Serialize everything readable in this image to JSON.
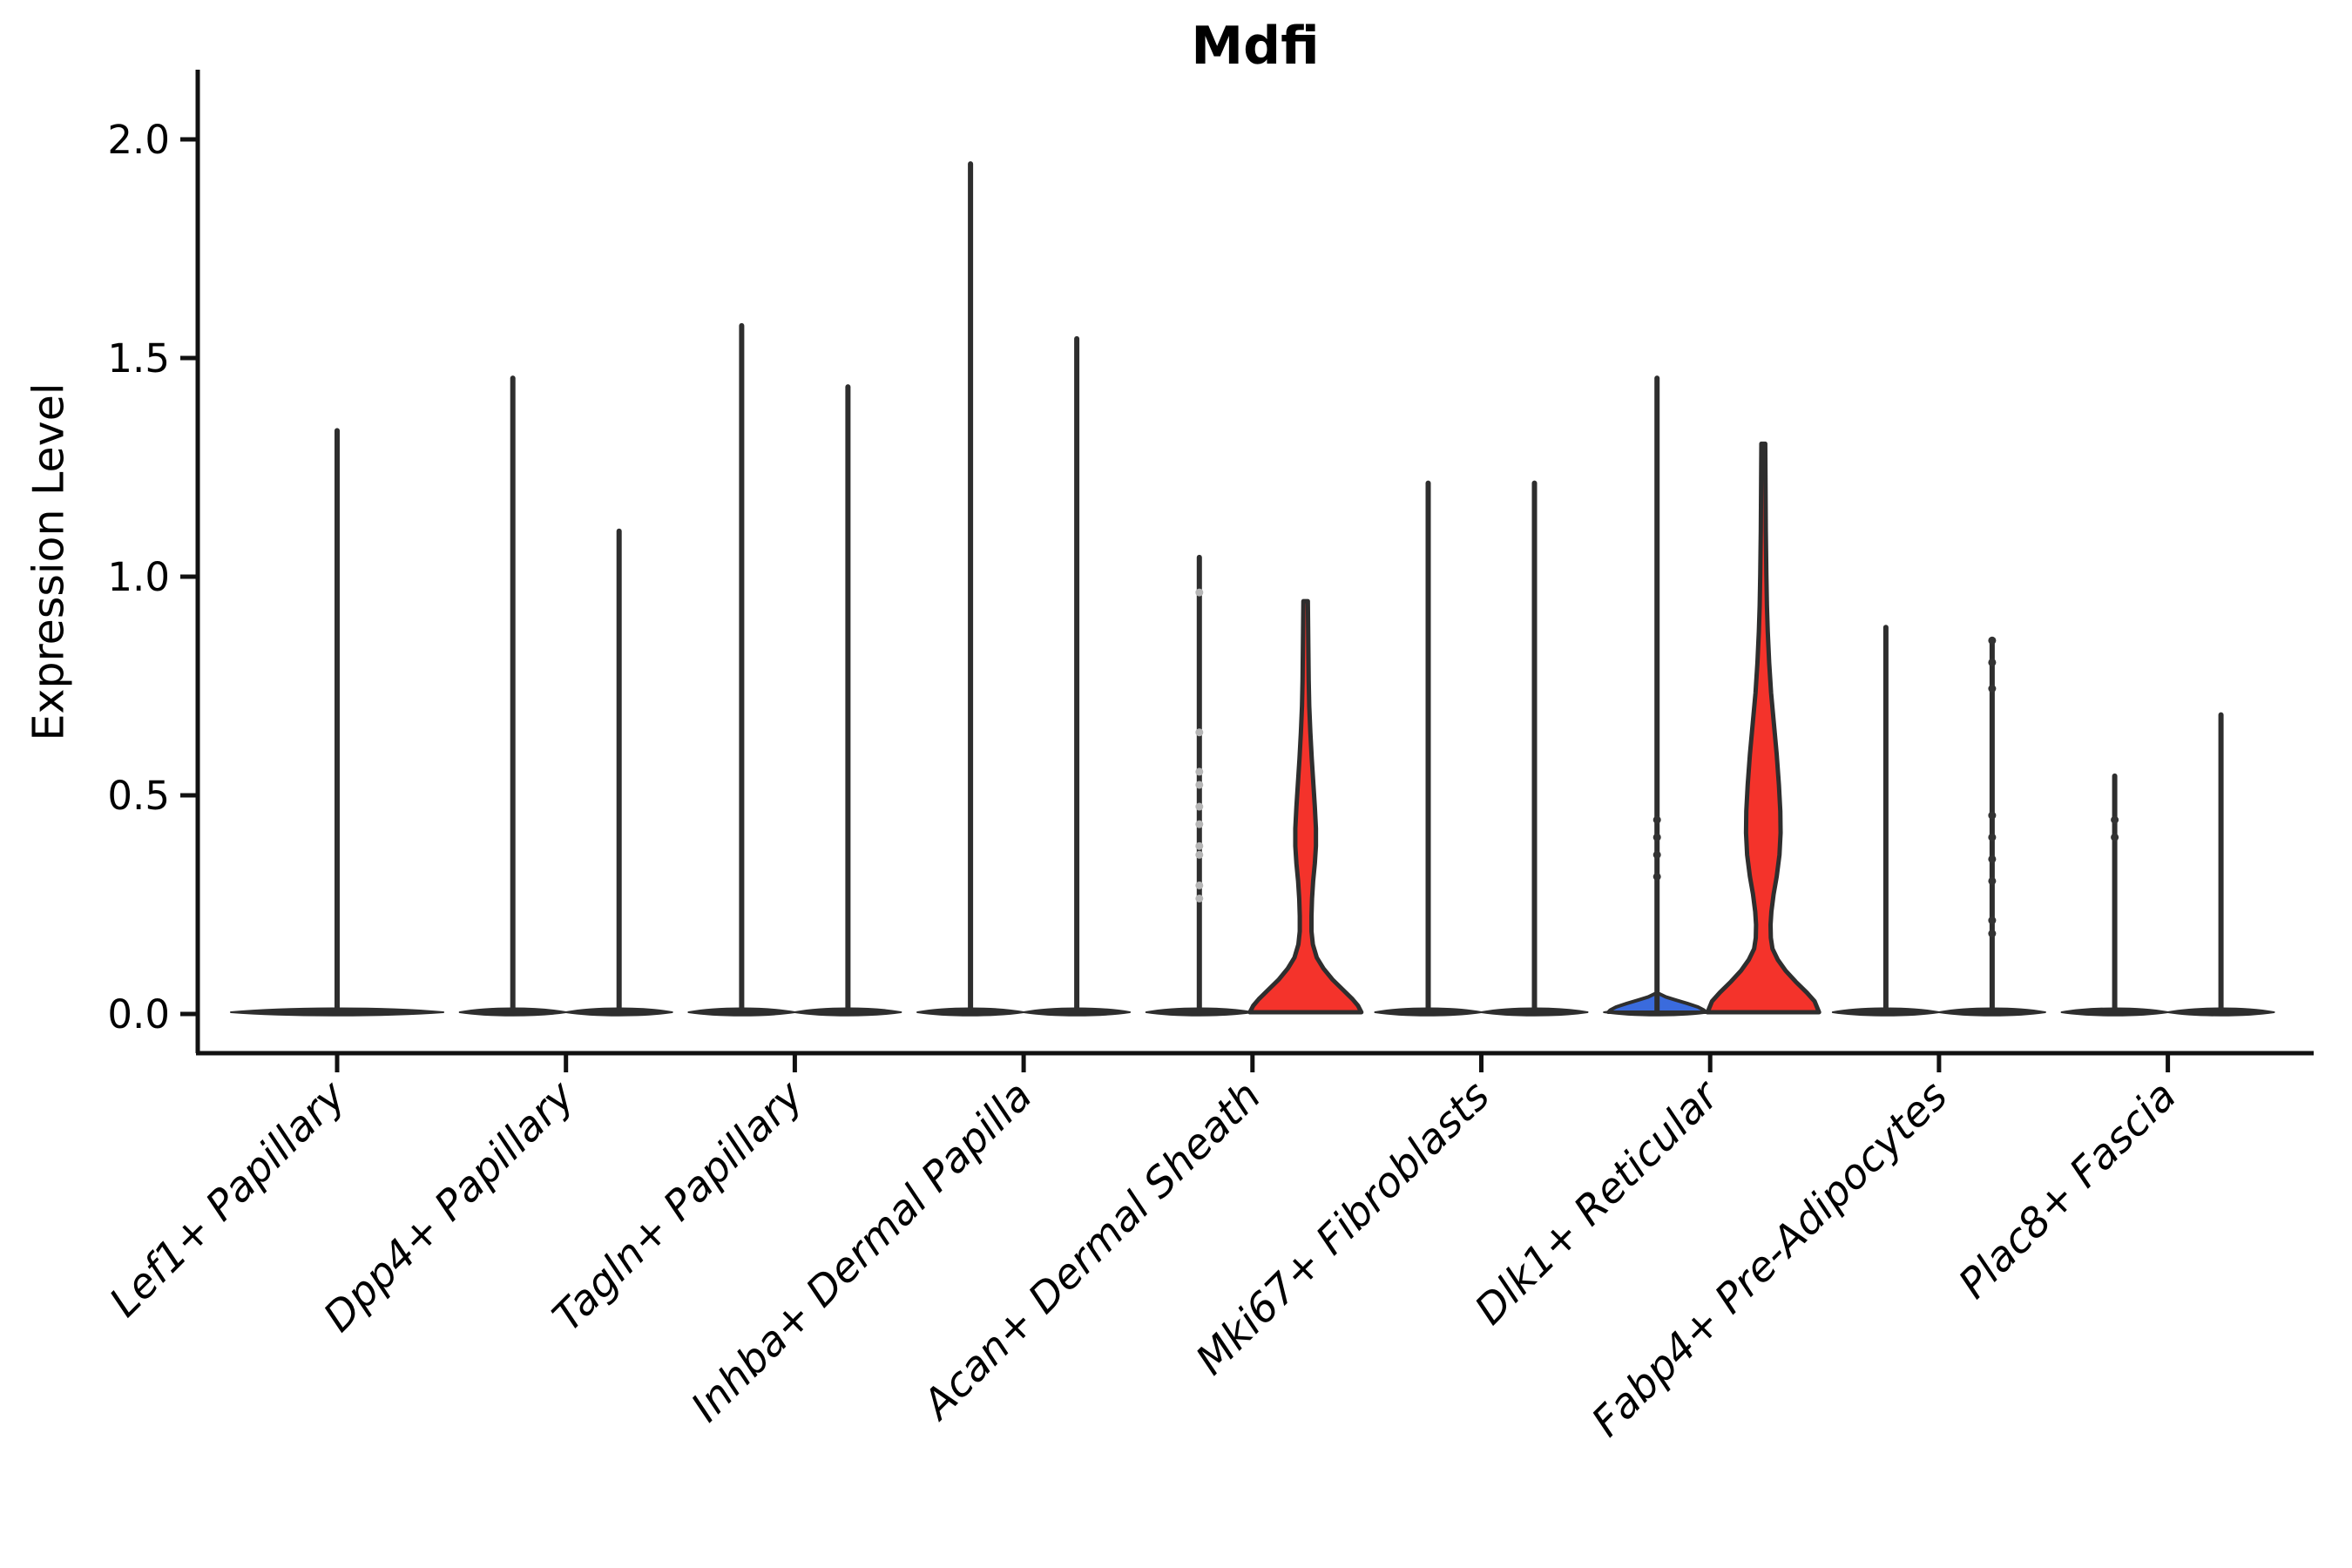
{
  "title": "Mdfi",
  "ylabel": "Expression Level",
  "chart_data": {
    "type": "violin",
    "title": "Mdfi",
    "xlabel": "",
    "ylabel": "Expression Level",
    "ylim": [
      0.0,
      2.0
    ],
    "yticks": [
      "0.0",
      "0.5",
      "1.0",
      "1.5",
      "2.0"
    ],
    "grid": false,
    "legend": "none",
    "categories": [
      "Lef1+ Papillary",
      "Dpp4+ Papillary",
      "Tagln+ Papillary",
      "Inhba+ Dermal Papilla",
      "Acan+ Dermal Sheath",
      "Mki67+ Fibroblasts",
      "Dlk1+ Reticular",
      "Fabp4+ Pre-Adipocytes",
      "Plac8+ Fascia"
    ],
    "colors": {
      "red_fill": "#f4332b",
      "blue_fill": "#3a6bdd",
      "violin_outline": "#2e2e2e",
      "axis": "#111111",
      "light_dot": "#b6b6b6",
      "dark_dot": "#333333"
    },
    "violins": [
      {
        "category": "Lef1+ Papillary",
        "slot": "center",
        "kind": "spike",
        "max_expression": 1.33,
        "wide_base": true,
        "fill": "none",
        "dots": [],
        "dot_shade": "none"
      },
      {
        "category": "Dpp4+ Papillary",
        "slot": "left",
        "kind": "spike",
        "max_expression": 1.45,
        "fill": "none",
        "dots": [],
        "dot_shade": "none"
      },
      {
        "category": "Dpp4+ Papillary",
        "slot": "right",
        "kind": "spike",
        "max_expression": 1.1,
        "fill": "none",
        "dots": [],
        "dot_shade": "none"
      },
      {
        "category": "Tagln+ Papillary",
        "slot": "left",
        "kind": "spike",
        "max_expression": 1.57,
        "fill": "none",
        "dots": [],
        "dot_shade": "none"
      },
      {
        "category": "Tagln+ Papillary",
        "slot": "right",
        "kind": "spike",
        "max_expression": 1.43,
        "fill": "none",
        "dots": [],
        "dot_shade": "none"
      },
      {
        "category": "Inhba+ Dermal Papilla",
        "slot": "left",
        "kind": "spike",
        "max_expression": 1.94,
        "fill": "none",
        "dots": [],
        "dot_shade": "none"
      },
      {
        "category": "Inhba+ Dermal Papilla",
        "slot": "right",
        "kind": "spike",
        "max_expression": 1.54,
        "fill": "none",
        "dots": [],
        "dot_shade": "none"
      },
      {
        "category": "Acan+ Dermal Sheath",
        "slot": "left",
        "kind": "spike",
        "max_expression": 1.04,
        "fill": "none",
        "dots": [
          0.96,
          0.64,
          0.55,
          0.52,
          0.47,
          0.43,
          0.38,
          0.36,
          0.29,
          0.26
        ],
        "dot_shade": "light"
      },
      {
        "category": "Acan+ Dermal Sheath",
        "slot": "right",
        "kind": "density",
        "max_expression": 0.94,
        "fill": "red",
        "profile": [
          [
            0.94,
            0.04
          ],
          [
            0.88,
            0.045
          ],
          [
            0.82,
            0.05
          ],
          [
            0.76,
            0.055
          ],
          [
            0.7,
            0.065
          ],
          [
            0.64,
            0.085
          ],
          [
            0.58,
            0.11
          ],
          [
            0.52,
            0.14
          ],
          [
            0.47,
            0.165
          ],
          [
            0.42,
            0.185
          ],
          [
            0.38,
            0.185
          ],
          [
            0.34,
            0.165
          ],
          [
            0.3,
            0.135
          ],
          [
            0.26,
            0.115
          ],
          [
            0.22,
            0.105
          ],
          [
            0.185,
            0.105
          ],
          [
            0.155,
            0.13
          ],
          [
            0.125,
            0.2
          ],
          [
            0.1,
            0.32
          ],
          [
            0.075,
            0.48
          ],
          [
            0.05,
            0.68
          ],
          [
            0.03,
            0.84
          ],
          [
            0.015,
            0.94
          ],
          [
            0.0,
            1.0
          ]
        ],
        "dots": [],
        "dot_shade": "none"
      },
      {
        "category": "Mki67+ Fibroblasts",
        "slot": "left",
        "kind": "spike",
        "max_expression": 1.21,
        "fill": "none",
        "dots": [],
        "dot_shade": "none"
      },
      {
        "category": "Mki67+ Fibroblasts",
        "slot": "right",
        "kind": "spike",
        "max_expression": 1.21,
        "fill": "none",
        "dots": [],
        "dot_shade": "none"
      },
      {
        "category": "Dlk1+ Reticular",
        "slot": "left",
        "kind": "spike",
        "max_expression": 1.45,
        "fill": "blue",
        "base_bump": {
          "peak": 0.042,
          "profile": [
            [
              0.042,
              0.05
            ],
            [
              0.035,
              0.18
            ],
            [
              0.028,
              0.38
            ],
            [
              0.02,
              0.62
            ],
            [
              0.012,
              0.84
            ],
            [
              0.005,
              0.96
            ],
            [
              0.0,
              1.0
            ]
          ]
        },
        "dots": [
          0.44,
          0.4,
          0.36,
          0.31
        ],
        "dot_shade": "dark"
      },
      {
        "category": "Dlk1+ Reticular",
        "slot": "right",
        "kind": "density",
        "max_expression": 1.3,
        "fill": "red",
        "profile": [
          [
            1.3,
            0.035
          ],
          [
            1.2,
            0.04
          ],
          [
            1.1,
            0.045
          ],
          [
            1.0,
            0.055
          ],
          [
            0.93,
            0.065
          ],
          [
            0.87,
            0.08
          ],
          [
            0.8,
            0.105
          ],
          [
            0.73,
            0.14
          ],
          [
            0.66,
            0.19
          ],
          [
            0.59,
            0.24
          ],
          [
            0.52,
            0.28
          ],
          [
            0.46,
            0.305
          ],
          [
            0.41,
            0.31
          ],
          [
            0.36,
            0.29
          ],
          [
            0.31,
            0.24
          ],
          [
            0.27,
            0.185
          ],
          [
            0.23,
            0.145
          ],
          [
            0.2,
            0.13
          ],
          [
            0.17,
            0.135
          ],
          [
            0.145,
            0.165
          ],
          [
            0.12,
            0.26
          ],
          [
            0.095,
            0.4
          ],
          [
            0.07,
            0.58
          ],
          [
            0.045,
            0.78
          ],
          [
            0.025,
            0.92
          ],
          [
            0.0,
            1.0
          ]
        ],
        "dots": [],
        "dot_shade": "none"
      },
      {
        "category": "Fabp4+ Pre-Adipocytes",
        "slot": "left",
        "kind": "spike",
        "max_expression": 0.88,
        "fill": "none",
        "dots": [],
        "dot_shade": "none"
      },
      {
        "category": "Fabp4+ Pre-Adipocytes",
        "slot": "right",
        "kind": "spike",
        "max_expression": 0.85,
        "fill": "none",
        "dots": [
          0.85,
          0.8,
          0.74,
          0.45,
          0.4,
          0.35,
          0.3,
          0.21,
          0.18
        ],
        "dot_shade": "dark"
      },
      {
        "category": "Plac8+ Fascia",
        "slot": "left",
        "kind": "spike",
        "max_expression": 0.54,
        "fill": "none",
        "dots": [
          0.44,
          0.4
        ],
        "dot_shade": "dark"
      },
      {
        "category": "Plac8+ Fascia",
        "slot": "right",
        "kind": "spike",
        "max_expression": 0.68,
        "fill": "none",
        "dots": [],
        "dot_shade": "none"
      }
    ]
  }
}
